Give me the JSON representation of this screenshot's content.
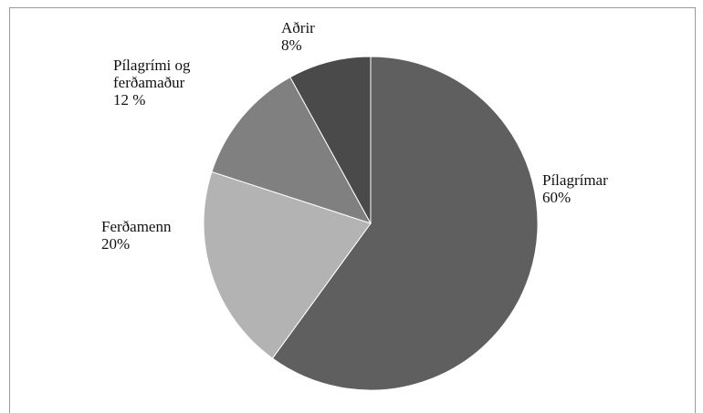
{
  "chart_data": {
    "type": "pie",
    "title": "",
    "slices": [
      {
        "label_lines": [
          "Pílagrímar",
          "60%"
        ],
        "value": 60,
        "color": "#5f5f5f"
      },
      {
        "label_lines": [
          "Ferðamenn",
          "20%"
        ],
        "value": 20,
        "color": "#b3b3b3"
      },
      {
        "label_lines": [
          "Pílagrími og",
          "ferðamaður",
          "12 %"
        ],
        "value": 12,
        "color": "#808080"
      },
      {
        "label_lines": [
          "Aðrir",
          "8%"
        ],
        "value": 8,
        "color": "#4a4a4a"
      }
    ],
    "start_angle_deg": 0,
    "direction": "clockwise",
    "legend": "none"
  }
}
